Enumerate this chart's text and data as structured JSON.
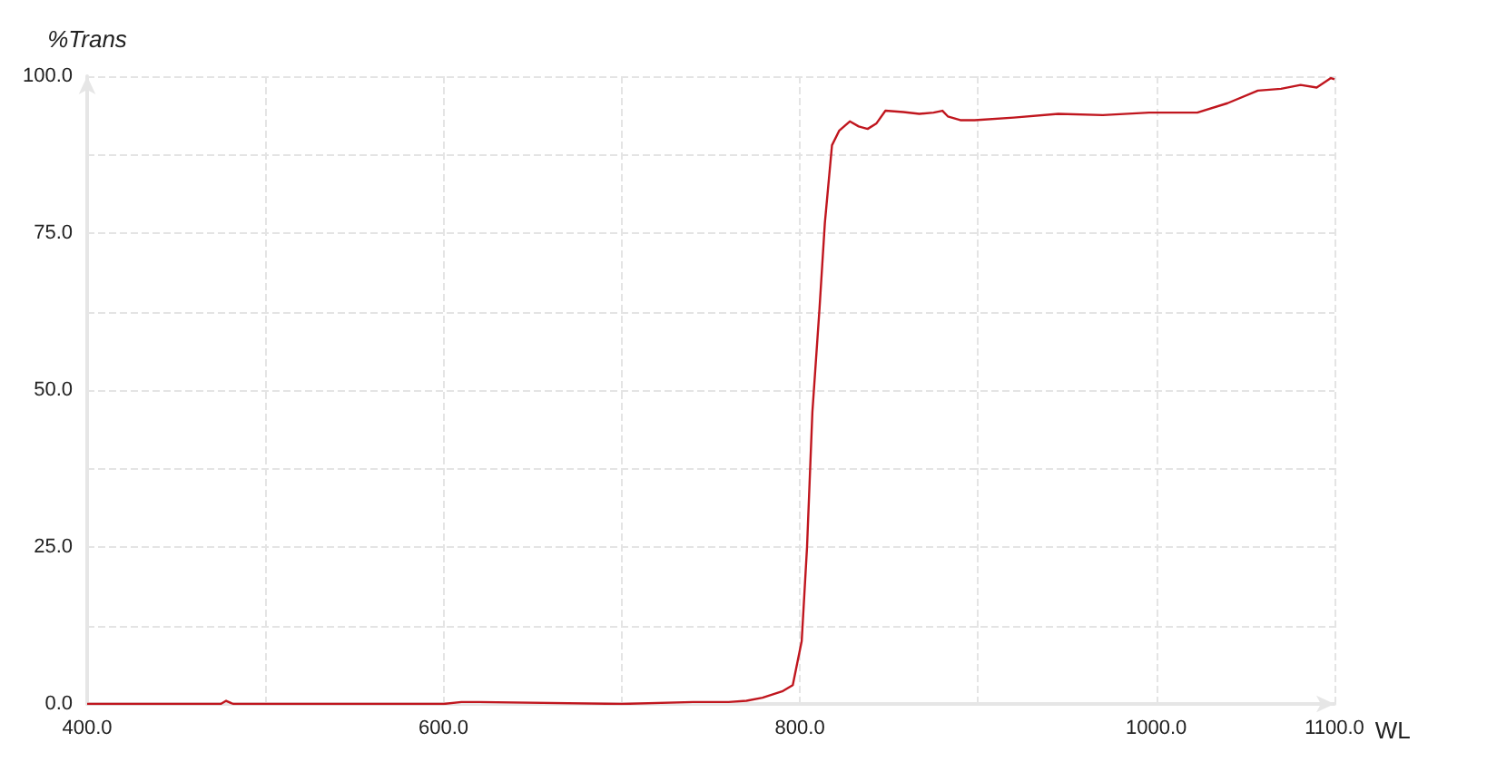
{
  "chart_data": {
    "type": "line",
    "ylabel": "%Trans",
    "xlabel": "WL",
    "x": [
      400,
      460,
      475,
      478,
      482,
      490,
      560,
      600,
      610,
      620,
      700,
      740,
      760,
      770,
      779,
      790,
      796,
      801,
      804,
      807,
      811,
      814,
      818,
      822,
      828,
      833,
      838,
      843,
      848,
      858,
      867,
      875,
      880,
      883,
      890,
      898,
      920,
      945,
      970,
      996,
      1023,
      1040,
      1057,
      1070,
      1081,
      1090,
      1098,
      1100
    ],
    "series": [
      {
        "color": "#c0161e",
        "values": [
          0,
          0,
          0,
          0.5,
          0,
          0,
          0,
          0,
          0.3,
          0.3,
          0,
          0.3,
          0.3,
          0.5,
          1,
          2,
          3,
          10,
          25,
          46.5,
          63,
          76.6,
          89,
          91.3,
          92.8,
          92,
          91.6,
          92.5,
          94.5,
          94.3,
          94,
          94.2,
          94.5,
          93.6,
          93,
          93,
          93.4,
          94,
          93.8,
          94.2,
          94.2,
          95.7,
          97.7,
          98,
          98.6,
          98.2,
          99.7,
          99.5
        ]
      }
    ],
    "xlim": [
      400,
      1100
    ],
    "xticks": [
      {
        "value": 400,
        "label": "400.0"
      },
      {
        "value": 500,
        "label": null
      },
      {
        "value": 600,
        "label": "600.0"
      },
      {
        "value": 700,
        "label": null
      },
      {
        "value": 800,
        "label": "800.0"
      },
      {
        "value": 900,
        "label": null
      },
      {
        "value": 1000,
        "label": "1000.0"
      },
      {
        "value": 1100,
        "label": "1100.0"
      }
    ],
    "ylim": [
      0,
      100
    ],
    "yticks": [
      {
        "value": 0,
        "label": "0.0"
      },
      {
        "value": 12.5,
        "label": null
      },
      {
        "value": 25,
        "label": "25.0"
      },
      {
        "value": 37.5,
        "label": null
      },
      {
        "value": 50,
        "label": "50.0"
      },
      {
        "value": 62.5,
        "label": null
      },
      {
        "value": 75,
        "label": "75.0"
      },
      {
        "value": 87.5,
        "label": null
      },
      {
        "value": 100,
        "label": "100.0"
      }
    ],
    "grid": true,
    "line_style": "solid",
    "marker": "none"
  }
}
